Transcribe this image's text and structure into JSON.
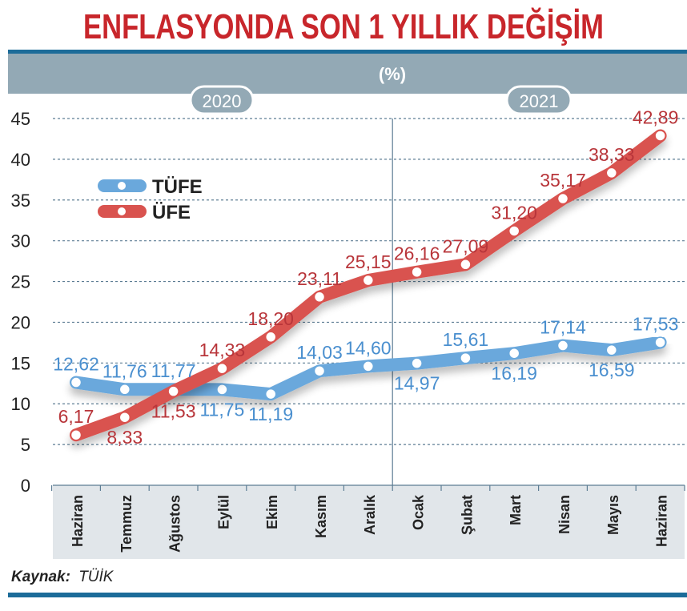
{
  "chart_data": {
    "type": "line",
    "title": "ENFLASYONDA SON 1 YILLIK DEĞİŞİM",
    "subtitle": "(%)",
    "year_labels": [
      "2020",
      "2021"
    ],
    "categories": [
      "Haziran",
      "Temmuz",
      "Ağustos",
      "Eylül",
      "Ekim",
      "Kasım",
      "Aralık",
      "Ocak",
      "Şubat",
      "Mart",
      "Nisan",
      "Mayıs",
      "Haziran"
    ],
    "ylim": [
      0,
      45
    ],
    "yticks": [
      0,
      5,
      10,
      15,
      20,
      25,
      30,
      35,
      40,
      45
    ],
    "grid": true,
    "legend_position": "top-left",
    "series": [
      {
        "name": "TÜFE",
        "color": "#6aa8dc",
        "values": [
          12.62,
          11.76,
          11.77,
          11.75,
          11.19,
          14.03,
          14.6,
          14.97,
          15.61,
          16.19,
          17.14,
          16.59,
          17.53
        ],
        "labels": [
          "12,62",
          "11,76",
          "11,77",
          "11,75",
          "11,19",
          "14,03",
          "14,60",
          "14,97",
          "15,61",
          "16,19",
          "17,14",
          "16,59",
          "17,53"
        ],
        "label_side": [
          "above",
          "above",
          "above",
          "below",
          "below",
          "above",
          "above",
          "below",
          "above",
          "below",
          "above",
          "below",
          "above"
        ]
      },
      {
        "name": "ÜFE",
        "color": "#d9534f",
        "values": [
          6.17,
          8.33,
          11.53,
          14.33,
          18.2,
          23.11,
          25.15,
          26.16,
          27.09,
          31.2,
          35.17,
          38.33,
          42.89
        ],
        "labels": [
          "6,17",
          "8,33",
          "11,53",
          "14,33",
          "18,20",
          "23,11",
          "25,15",
          "26,16",
          "27,09",
          "31,20",
          "35,17",
          "38,33",
          "42,89"
        ],
        "label_side": [
          "above",
          "below",
          "below",
          "above",
          "above",
          "above",
          "above",
          "above",
          "above",
          "above",
          "above",
          "above",
          "above"
        ]
      }
    ]
  },
  "source": {
    "prefix": "Kaynak:",
    "name": "TÜİK"
  },
  "colors": {
    "title": "#c8262b",
    "band": "#93a9b5",
    "band_dark": "#1c6c99",
    "axis_bg": "#e1e6ea",
    "grid": "#5d7d94",
    "tufe_label": "#4a8fcf",
    "ufe_label": "#b8353a"
  }
}
